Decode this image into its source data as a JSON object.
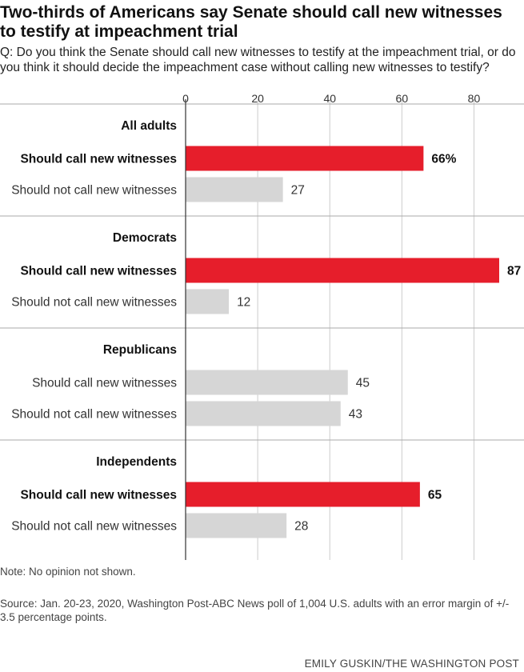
{
  "title": "Two-thirds of Americans say Senate should call new witnesses to testify at impeachment trial",
  "question": "Q: Do you think the Senate should call new witnesses to testify at the impeachment trial, or do you think it should decide the impeachment case without calling new witnesses to testify?",
  "note": "Note: No opinion not shown.",
  "source": "Source: Jan. 20-23, 2020, Washington Post-ABC News poll of 1,004 U.S. adults with an error margin of +/- 3.5 percentage points.",
  "credit": "EMILY GUSKIN/THE WASHINGTON POST",
  "colors": {
    "highlight": "#e61e2b",
    "neutral": "#d6d6d6",
    "grid": "#cccccc",
    "axis": "#333333"
  },
  "chart_data": {
    "type": "bar",
    "orientation": "horizontal",
    "xlim": [
      0,
      87
    ],
    "xticks": [
      "0",
      "20",
      "40",
      "60",
      "80"
    ],
    "xtick_values": [
      0,
      20,
      40,
      60,
      80
    ],
    "groups": [
      {
        "name": "All adults",
        "bars": [
          {
            "label": "Should call new witnesses",
            "value": 66,
            "value_label": "66%",
            "highlight": true
          },
          {
            "label": "Should not call new witnesses",
            "value": 27,
            "value_label": "27",
            "highlight": false
          }
        ]
      },
      {
        "name": "Democrats",
        "bars": [
          {
            "label": "Should call new witnesses",
            "value": 87,
            "value_label": "87",
            "highlight": true
          },
          {
            "label": "Should not call new witnesses",
            "value": 12,
            "value_label": "12",
            "highlight": false
          }
        ]
      },
      {
        "name": "Republicans",
        "bars": [
          {
            "label": "Should call new witnesses",
            "value": 45,
            "value_label": "45",
            "highlight": false
          },
          {
            "label": "Should not call new witnesses",
            "value": 43,
            "value_label": "43",
            "highlight": false
          }
        ]
      },
      {
        "name": "Independents",
        "bars": [
          {
            "label": "Should call new witnesses",
            "value": 65,
            "value_label": "65",
            "highlight": true
          },
          {
            "label": "Should not call new witnesses",
            "value": 28,
            "value_label": "28",
            "highlight": false
          }
        ]
      }
    ]
  }
}
